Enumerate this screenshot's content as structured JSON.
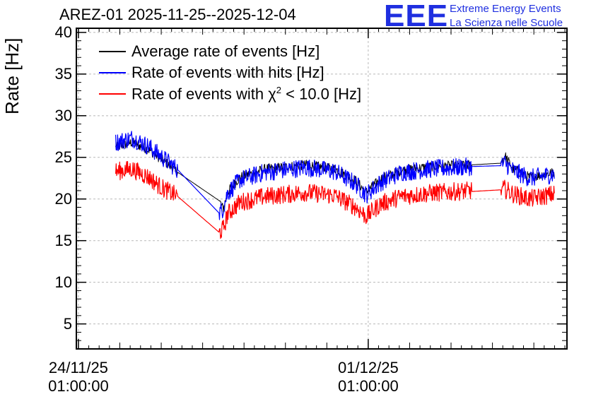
{
  "chart_data": {
    "type": "line",
    "title": "AREZ-01 2025-11-25--2025-12-04",
    "ylabel": "Rate [Hz]",
    "xlabel": "",
    "ylim": [
      2,
      40.5
    ],
    "yticks": [
      5,
      10,
      15,
      20,
      25,
      30,
      35,
      40
    ],
    "xticks": [
      {
        "day": 0,
        "line1": "24/11/25",
        "line2": "01:00:00"
      },
      {
        "day": 7,
        "line1": "01/12/25",
        "line2": "01:00:00"
      }
    ],
    "x_units": "days since 24/11/25 01:00:00",
    "xlim": [
      -0.05,
      11.8
    ],
    "grid": true,
    "legend_position": "top-left",
    "series": [
      {
        "name": "Average rate of events [Hz]",
        "color": "#000000",
        "points": [
          [
            0.9,
            26.2
          ],
          [
            1.3,
            26.8
          ],
          [
            1.7,
            25.9
          ],
          [
            2.0,
            24.8
          ],
          [
            2.4,
            23.2
          ],
          [
            3.4,
            19.8
          ],
          [
            3.5,
            18.8
          ],
          [
            3.6,
            20.8
          ],
          [
            3.9,
            22.6
          ],
          [
            4.5,
            23.6
          ],
          [
            5.5,
            24.1
          ],
          [
            6.2,
            23.6
          ],
          [
            6.7,
            22.2
          ],
          [
            6.95,
            20.8
          ],
          [
            7.3,
            22.4
          ],
          [
            7.8,
            23.4
          ],
          [
            8.5,
            23.9
          ],
          [
            9.5,
            24.1
          ],
          [
            10.2,
            24.3
          ],
          [
            10.3,
            25.2
          ],
          [
            10.5,
            23.6
          ],
          [
            10.9,
            22.6
          ],
          [
            11.5,
            23.2
          ]
        ]
      },
      {
        "name": "Rate of events with hits [Hz]",
        "color": "#0000ff",
        "points": [
          [
            0.9,
            26.8
          ],
          [
            1.3,
            27.3
          ],
          [
            1.7,
            26.3
          ],
          [
            2.0,
            25.1
          ],
          [
            2.4,
            23.5
          ],
          [
            3.4,
            18.3
          ],
          [
            3.5,
            18.9
          ],
          [
            3.6,
            20.7
          ],
          [
            3.9,
            22.3
          ],
          [
            4.5,
            23.2
          ],
          [
            5.5,
            23.8
          ],
          [
            6.2,
            23.3
          ],
          [
            6.7,
            21.8
          ],
          [
            6.95,
            20.5
          ],
          [
            7.3,
            22.0
          ],
          [
            7.8,
            23.2
          ],
          [
            8.5,
            23.6
          ],
          [
            9.5,
            23.9
          ],
          [
            10.2,
            24.0
          ],
          [
            10.3,
            24.3
          ],
          [
            10.5,
            23.4
          ],
          [
            10.9,
            22.5
          ],
          [
            11.5,
            23.0
          ]
        ]
      },
      {
        "name": "Rate of events with χ² < 10.0 [Hz]",
        "color": "#ff0000",
        "points": [
          [
            0.9,
            23.3
          ],
          [
            1.3,
            23.6
          ],
          [
            1.7,
            22.6
          ],
          [
            2.0,
            21.4
          ],
          [
            2.4,
            20.3
          ],
          [
            3.4,
            16.0
          ],
          [
            3.5,
            16.4
          ],
          [
            3.6,
            18.2
          ],
          [
            3.9,
            19.6
          ],
          [
            4.5,
            20.3
          ],
          [
            5.5,
            20.8
          ],
          [
            6.2,
            20.4
          ],
          [
            6.7,
            19.0
          ],
          [
            6.95,
            17.9
          ],
          [
            7.3,
            19.4
          ],
          [
            7.8,
            20.3
          ],
          [
            8.5,
            20.7
          ],
          [
            9.5,
            21.0
          ],
          [
            9.5,
            20.9
          ],
          [
            10.2,
            21.1
          ],
          [
            10.3,
            21.2
          ],
          [
            10.5,
            20.6
          ],
          [
            10.9,
            20.0
          ],
          [
            11.5,
            20.6
          ]
        ]
      }
    ]
  },
  "logo": {
    "mark": "EEE",
    "line1": "Extreme Energy Events",
    "line2": "La Scienza nelle Scuole"
  },
  "legend": {
    "avg": "Average rate of events [Hz]",
    "hits": "Rate of events with hits [Hz]",
    "chi_pre": "Rate of events with ",
    "chi_sym": "χ",
    "chi_sup": "2",
    "chi_post": " < 10.0 [Hz]"
  }
}
